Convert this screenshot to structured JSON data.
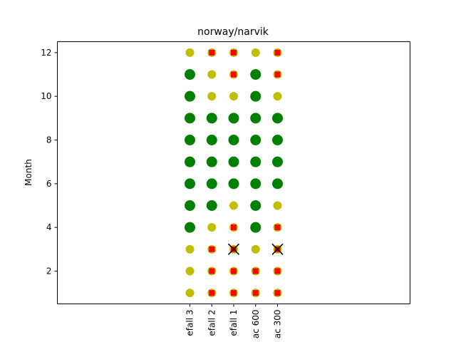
{
  "chart_data": {
    "type": "scatter",
    "title": "norway/narvik",
    "xlabel": "",
    "ylabel": "Month",
    "categories": [
      "efall 3",
      "efall 2",
      "efall 1",
      "ac 600",
      "ac 300"
    ],
    "yticks": [
      2,
      4,
      6,
      8,
      10,
      12
    ],
    "ylim": [
      0.5,
      12.5
    ],
    "grid": false,
    "colors": {
      "large_dot": "#008000",
      "small_dot": "#bfbf00",
      "square_marker": "#ff0000",
      "x_marker": "#000000"
    },
    "marker_legend": {
      "large_dot": "large green circle",
      "small_dot": "small olive circle",
      "square": "small red square on olive circle",
      "x": "black cross"
    },
    "points": [
      {
        "category": "efall 3",
        "month": 1,
        "marker": "small_dot"
      },
      {
        "category": "efall 3",
        "month": 2,
        "marker": "small_dot"
      },
      {
        "category": "efall 3",
        "month": 3,
        "marker": "small_dot"
      },
      {
        "category": "efall 3",
        "month": 4,
        "marker": "large_dot"
      },
      {
        "category": "efall 3",
        "month": 5,
        "marker": "large_dot"
      },
      {
        "category": "efall 3",
        "month": 6,
        "marker": "large_dot"
      },
      {
        "category": "efall 3",
        "month": 7,
        "marker": "large_dot"
      },
      {
        "category": "efall 3",
        "month": 8,
        "marker": "large_dot"
      },
      {
        "category": "efall 3",
        "month": 9,
        "marker": "large_dot"
      },
      {
        "category": "efall 3",
        "month": 10,
        "marker": "large_dot"
      },
      {
        "category": "efall 3",
        "month": 11,
        "marker": "large_dot"
      },
      {
        "category": "efall 3",
        "month": 12,
        "marker": "small_dot"
      },
      {
        "category": "efall 2",
        "month": 1,
        "marker": "square"
      },
      {
        "category": "efall 2",
        "month": 2,
        "marker": "square"
      },
      {
        "category": "efall 2",
        "month": 3,
        "marker": "square"
      },
      {
        "category": "efall 2",
        "month": 4,
        "marker": "small_dot"
      },
      {
        "category": "efall 2",
        "month": 5,
        "marker": "large_dot"
      },
      {
        "category": "efall 2",
        "month": 6,
        "marker": "large_dot"
      },
      {
        "category": "efall 2",
        "month": 7,
        "marker": "large_dot"
      },
      {
        "category": "efall 2",
        "month": 8,
        "marker": "large_dot"
      },
      {
        "category": "efall 2",
        "month": 9,
        "marker": "large_dot"
      },
      {
        "category": "efall 2",
        "month": 10,
        "marker": "small_dot"
      },
      {
        "category": "efall 2",
        "month": 11,
        "marker": "small_dot"
      },
      {
        "category": "efall 2",
        "month": 12,
        "marker": "square"
      },
      {
        "category": "efall 1",
        "month": 1,
        "marker": "square"
      },
      {
        "category": "efall 1",
        "month": 2,
        "marker": "square"
      },
      {
        "category": "efall 1",
        "month": 3,
        "marker": "square_x"
      },
      {
        "category": "efall 1",
        "month": 4,
        "marker": "square"
      },
      {
        "category": "efall 1",
        "month": 5,
        "marker": "small_dot"
      },
      {
        "category": "efall 1",
        "month": 6,
        "marker": "large_dot"
      },
      {
        "category": "efall 1",
        "month": 7,
        "marker": "large_dot"
      },
      {
        "category": "efall 1",
        "month": 8,
        "marker": "large_dot"
      },
      {
        "category": "efall 1",
        "month": 9,
        "marker": "large_dot"
      },
      {
        "category": "efall 1",
        "month": 10,
        "marker": "small_dot"
      },
      {
        "category": "efall 1",
        "month": 11,
        "marker": "square"
      },
      {
        "category": "efall 1",
        "month": 12,
        "marker": "square"
      },
      {
        "category": "ac 600",
        "month": 1,
        "marker": "square"
      },
      {
        "category": "ac 600",
        "month": 2,
        "marker": "square"
      },
      {
        "category": "ac 600",
        "month": 3,
        "marker": "small_dot"
      },
      {
        "category": "ac 600",
        "month": 4,
        "marker": "large_dot"
      },
      {
        "category": "ac 600",
        "month": 5,
        "marker": "large_dot"
      },
      {
        "category": "ac 600",
        "month": 6,
        "marker": "large_dot"
      },
      {
        "category": "ac 600",
        "month": 7,
        "marker": "large_dot"
      },
      {
        "category": "ac 600",
        "month": 8,
        "marker": "large_dot"
      },
      {
        "category": "ac 600",
        "month": 9,
        "marker": "large_dot"
      },
      {
        "category": "ac 600",
        "month": 10,
        "marker": "large_dot"
      },
      {
        "category": "ac 600",
        "month": 11,
        "marker": "large_dot"
      },
      {
        "category": "ac 600",
        "month": 12,
        "marker": "small_dot"
      },
      {
        "category": "ac 300",
        "month": 1,
        "marker": "square"
      },
      {
        "category": "ac 300",
        "month": 2,
        "marker": "square"
      },
      {
        "category": "ac 300",
        "month": 3,
        "marker": "square_x"
      },
      {
        "category": "ac 300",
        "month": 4,
        "marker": "square"
      },
      {
        "category": "ac 300",
        "month": 5,
        "marker": "small_dot"
      },
      {
        "category": "ac 300",
        "month": 6,
        "marker": "large_dot"
      },
      {
        "category": "ac 300",
        "month": 7,
        "marker": "large_dot"
      },
      {
        "category": "ac 300",
        "month": 8,
        "marker": "large_dot"
      },
      {
        "category": "ac 300",
        "month": 9,
        "marker": "large_dot"
      },
      {
        "category": "ac 300",
        "month": 10,
        "marker": "small_dot"
      },
      {
        "category": "ac 300",
        "month": 11,
        "marker": "square"
      },
      {
        "category": "ac 300",
        "month": 12,
        "marker": "square"
      }
    ]
  }
}
